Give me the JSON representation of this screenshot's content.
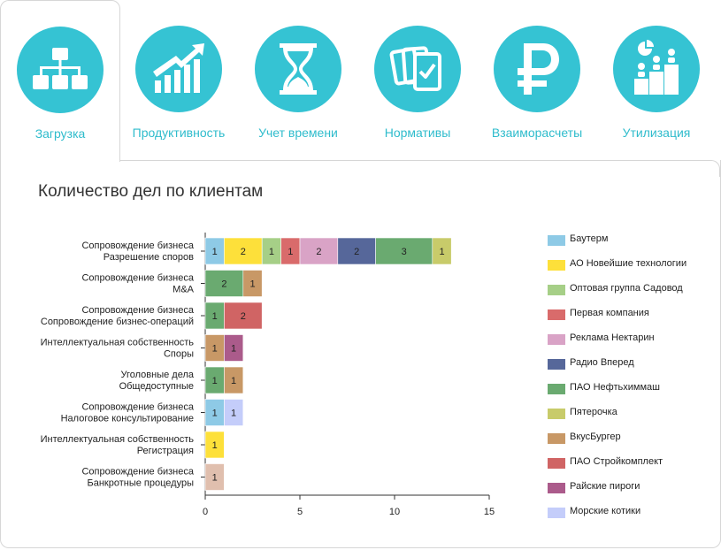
{
  "tabs": [
    {
      "label": "Загрузка",
      "icon": "hierarchy-icon",
      "active": true
    },
    {
      "label": "Продуктивность",
      "icon": "growth-chart-icon",
      "active": false
    },
    {
      "label": "Учет времени",
      "icon": "hourglass-icon",
      "active": false
    },
    {
      "label": "Нормативы",
      "icon": "cards-check-icon",
      "active": false
    },
    {
      "label": "Взаиморасчеты",
      "icon": "ruble-icon",
      "active": false
    },
    {
      "label": "Утилизация",
      "icon": "people-podium-icon",
      "active": false
    }
  ],
  "colors": {
    "accent": "#35c3d3"
  },
  "chart_data": {
    "type": "bar",
    "orientation": "horizontal",
    "stacked": true,
    "title": "Количество дел по клиентам",
    "categories": [
      [
        "Сопровождение бизнеса",
        "Разрешение споров"
      ],
      [
        "Сопровождение бизнеса",
        "M&A"
      ],
      [
        "Сопровождение бизнеса",
        "Сопровождение бизнес-операций"
      ],
      [
        "Интеллектуальная собственность",
        "Споры"
      ],
      [
        "Уголовные дела",
        "Общедоступные"
      ],
      [
        "Сопровождение бизнеса",
        "Налоговое консультирование"
      ],
      [
        "Интеллектуальная собственность",
        "Регистрация"
      ],
      [
        "Сопровождение бизнеса",
        "Банкротные процедуры"
      ]
    ],
    "xlim": [
      0,
      15
    ],
    "x_ticks": [
      0,
      5,
      10,
      15
    ],
    "legend_position": "right",
    "series": [
      {
        "name": "Баутерм",
        "color": "#8ecae6",
        "values": [
          1,
          0,
          0,
          0,
          0,
          1,
          0,
          0
        ]
      },
      {
        "name": "АО Новейшие технологии",
        "color": "#fde03a",
        "values": [
          2,
          0,
          0,
          0,
          0,
          0,
          1,
          0
        ]
      },
      {
        "name": "Оптовая группа Садовод",
        "color": "#a6cf87",
        "values": [
          1,
          0,
          0,
          0,
          0,
          0,
          0,
          0
        ]
      },
      {
        "name": "Первая компания",
        "color": "#d96b6b",
        "values": [
          1,
          0,
          0,
          0,
          0,
          0,
          0,
          0
        ]
      },
      {
        "name": "Реклама Нектарин",
        "color": "#d9a3c6",
        "values": [
          2,
          0,
          0,
          0,
          0,
          0,
          0,
          0
        ]
      },
      {
        "name": "Радио Вперед",
        "color": "#56679a",
        "values": [
          2,
          0,
          0,
          0,
          0,
          0,
          0,
          0
        ]
      },
      {
        "name": "ПАО Нефтьхиммаш",
        "color": "#6aaa70",
        "values": [
          3,
          2,
          1,
          0,
          1,
          0,
          0,
          0
        ]
      },
      {
        "name": "Пятерочка",
        "color": "#c8cb6a",
        "values": [
          1,
          0,
          0,
          0,
          0,
          0,
          0,
          0
        ]
      },
      {
        "name": "ВкусБургер",
        "color": "#c89866",
        "values": [
          0,
          1,
          0,
          1,
          1,
          0,
          0,
          0
        ]
      },
      {
        "name": "ПАО Стройкомплект",
        "color": "#d06464",
        "values": [
          0,
          0,
          2,
          0,
          0,
          0,
          0,
          0
        ]
      },
      {
        "name": "Райские пироги",
        "color": "#ab5b8b",
        "values": [
          0,
          0,
          0,
          1,
          0,
          0,
          0,
          0
        ]
      },
      {
        "name": "Морские котики",
        "color": "#c4cdfa",
        "values": [
          0,
          0,
          0,
          0,
          0,
          1,
          0,
          0
        ]
      },
      {
        "name": "",
        "color": "#e0bfae",
        "values": [
          0,
          0,
          0,
          0,
          0,
          0,
          0,
          1
        ]
      }
    ]
  }
}
